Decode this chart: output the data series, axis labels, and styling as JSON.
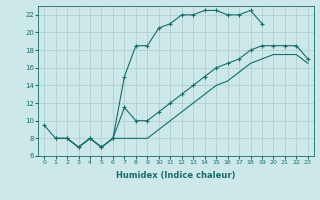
{
  "title": "",
  "xlabel": "Humidex (Indice chaleur)",
  "bg_color": "#cce8e8",
  "grid_color": "#aacccc",
  "line_color": "#1a6b6b",
  "xlim": [
    -0.5,
    23.5
  ],
  "ylim": [
    6,
    23
  ],
  "yticks": [
    6,
    8,
    10,
    12,
    14,
    16,
    18,
    20,
    22
  ],
  "xticks": [
    0,
    1,
    2,
    3,
    4,
    5,
    6,
    7,
    8,
    9,
    10,
    11,
    12,
    13,
    14,
    15,
    16,
    17,
    18,
    19,
    20,
    21,
    22,
    23
  ],
  "line1_x": [
    0,
    1,
    2,
    3,
    4,
    5,
    6,
    7,
    8,
    9,
    10,
    11,
    12,
    13,
    14,
    15,
    16,
    17,
    18,
    19
  ],
  "line1_y": [
    9.5,
    8,
    8,
    7,
    8,
    7,
    8,
    15,
    18.5,
    18.5,
    20.5,
    21,
    22,
    22,
    22.5,
    22.5,
    22,
    22,
    22.5,
    21
  ],
  "line2_x": [
    1,
    2,
    3,
    4,
    5,
    6,
    7,
    8,
    9,
    10,
    11,
    12,
    13,
    14,
    15,
    16,
    17,
    18,
    19,
    20,
    21,
    22,
    23
  ],
  "line2_y": [
    8,
    8,
    7,
    8,
    7,
    8,
    8,
    8,
    8,
    9,
    10,
    11,
    12,
    13,
    14,
    14.5,
    15.5,
    16.5,
    17,
    17.5,
    17.5,
    17.5,
    16.5
  ],
  "line3_x": [
    1,
    2,
    3,
    4,
    5,
    6,
    7,
    8,
    9,
    10,
    11,
    12,
    13,
    14,
    15,
    16,
    17,
    18,
    19,
    20,
    21,
    22,
    23
  ],
  "line3_y": [
    8,
    8,
    7,
    8,
    7,
    8,
    11.5,
    10,
    10,
    11,
    12,
    13,
    14,
    15,
    16,
    16.5,
    17,
    18,
    18.5,
    18.5,
    18.5,
    18.5,
    17
  ]
}
